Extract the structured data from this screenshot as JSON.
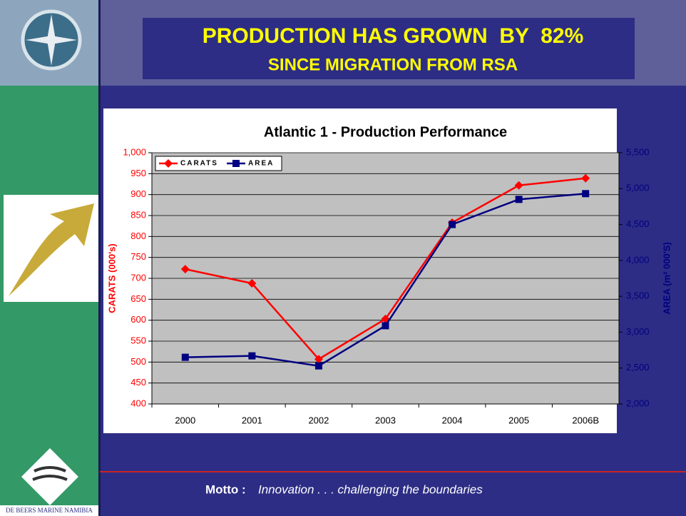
{
  "slide": {
    "title": "PRODUCTION HAS GROWN  BY  82%",
    "subtitle": "SINCE MIGRATION FROM RSA",
    "motto_label": "Motto :",
    "motto": "Innovation . . . challenging the boundaries",
    "logo_text": "DE BEERS MARINE NAMIBIA"
  },
  "chart_data": {
    "type": "line",
    "title": "Atlantic 1 - Production Performance",
    "categories": [
      "2000",
      "2001",
      "2002",
      "2003",
      "2004",
      "2005",
      "2006B"
    ],
    "series": [
      {
        "name": "CARATS",
        "color": "#ff0000",
        "marker": "diamond",
        "values": [
          722,
          688,
          507,
          603,
          833,
          922,
          939
        ]
      },
      {
        "name": "AREA",
        "color": "#000080",
        "marker": "square",
        "axis": "y2",
        "values": [
          2650,
          2670,
          2530,
          3090,
          4500,
          4850,
          4930
        ]
      }
    ],
    "ylabel": "CARATS (000's)",
    "y2label": "AREA (m² 000'S)",
    "ylim": [
      400,
      1000
    ],
    "yticks": [
      400,
      450,
      500,
      550,
      600,
      650,
      700,
      750,
      800,
      850,
      900,
      950,
      {
        "value": 1000,
        "label": "1,000"
      }
    ],
    "y2lim": [
      2000,
      5500
    ],
    "y2ticks": [
      {
        "value": 2000,
        "label": "2,000"
      },
      {
        "value": 2500,
        "label": "2,500"
      },
      {
        "value": 3000,
        "label": "3,000"
      },
      {
        "value": 3500,
        "label": "3,500"
      },
      {
        "value": 4000,
        "label": "4,000"
      },
      {
        "value": 4500,
        "label": "4,500"
      },
      {
        "value": 5000,
        "label": "5,000"
      },
      {
        "value": 5500,
        "label": "5,500"
      }
    ],
    "grid": true,
    "legend": "top-left"
  }
}
